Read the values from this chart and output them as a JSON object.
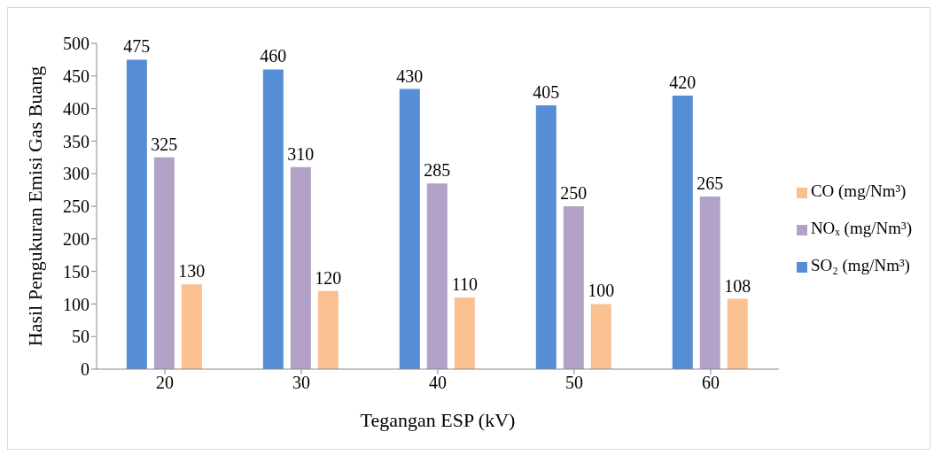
{
  "chart_data": {
    "type": "bar",
    "xlabel": "Tegangan ESP (kV)",
    "ylabel": "Hasil Pengukuran Emisi Gas Buang",
    "categories": [
      "20",
      "30",
      "40",
      "50",
      "60"
    ],
    "series": [
      {
        "name": "SO₂ (mg/Nm³)",
        "color": "#558ed5",
        "values": [
          475,
          460,
          430,
          405,
          420
        ]
      },
      {
        "name": "NOₓ (mg/Nm³)",
        "color": "#b3a2c7",
        "values": [
          325,
          310,
          285,
          250,
          265
        ]
      },
      {
        "name": "CO (mg/Nm³)",
        "color": "#fac090",
        "values": [
          130,
          120,
          110,
          100,
          108
        ]
      }
    ],
    "ylim": [
      0,
      500
    ],
    "yticks": [
      0,
      50,
      100,
      150,
      200,
      250,
      300,
      350,
      400,
      450,
      500
    ],
    "grid": false,
    "legend": "right",
    "data_labels": true
  }
}
